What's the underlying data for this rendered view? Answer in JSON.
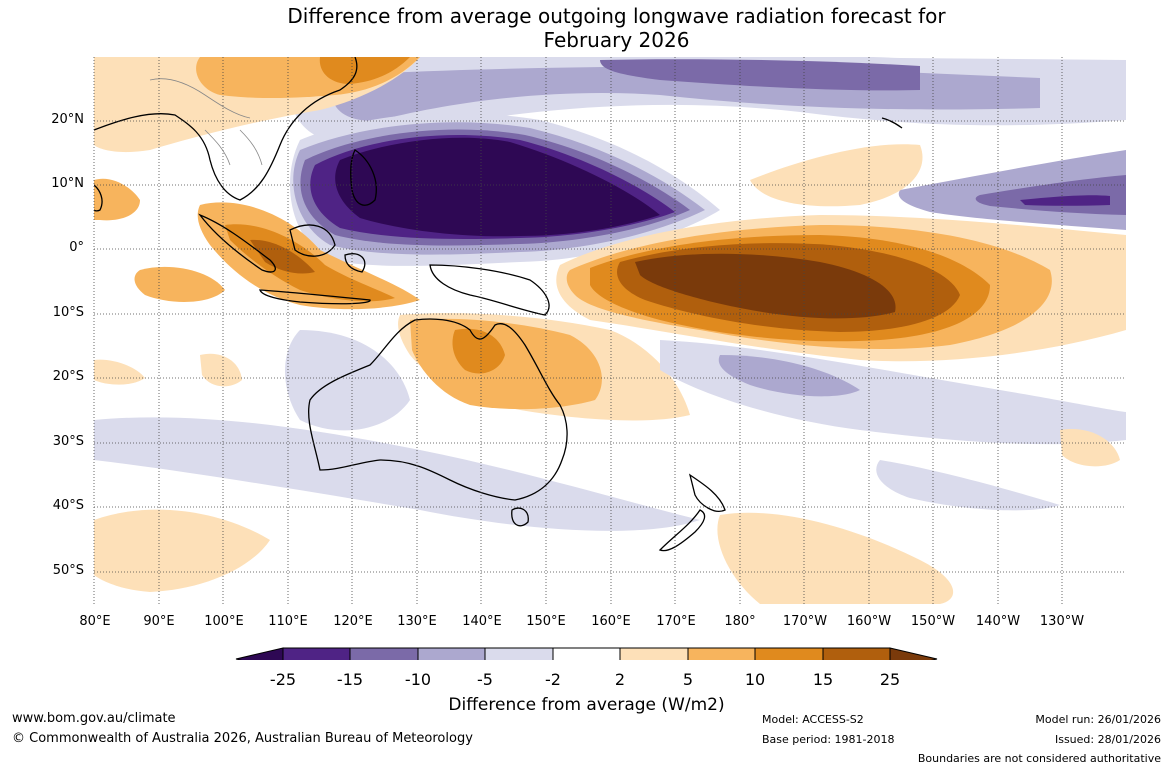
{
  "title_line1": "Difference from average outgoing longwave radiation forecast for",
  "title_line2": "February 2026",
  "map": {
    "lat_labels": [
      "20°N",
      "10°N",
      "0°",
      "10°S",
      "20°S",
      "30°S",
      "40°S",
      "50°S"
    ],
    "lon_labels": [
      "80°E",
      "90°E",
      "100°E",
      "110°E",
      "120°E",
      "130°E",
      "140°E",
      "150°E",
      "160°E",
      "170°E",
      "180°",
      "170°W",
      "160°W",
      "150°W",
      "140°W",
      "130°W"
    ]
  },
  "colorbar": {
    "labels": [
      "-25",
      "-15",
      "-10",
      "-5",
      "-2",
      "2",
      "5",
      "10",
      "15",
      "25"
    ],
    "colors": [
      "#2e0854",
      "#4f2385",
      "#7b6aa8",
      "#aca8cf",
      "#dadbec",
      "#ffffff",
      "#fde0b8",
      "#f7b45d",
      "#e08a1e",
      "#b05f0d",
      "#7a3a0b"
    ],
    "title": "Difference from average (W/m2)"
  },
  "footer": {
    "website": "www.bom.gov.au/climate",
    "copyright": "© Commonwealth of Australia 2026, Australian Bureau of Meteorology",
    "model": "Model: ACCESS-S2",
    "base_period": "Base period: 1981-2018",
    "model_run": "Model run: 26/01/2026",
    "issued": "Issued: 28/01/2026",
    "disclaimer": "Boundaries are not considered authoritative"
  }
}
